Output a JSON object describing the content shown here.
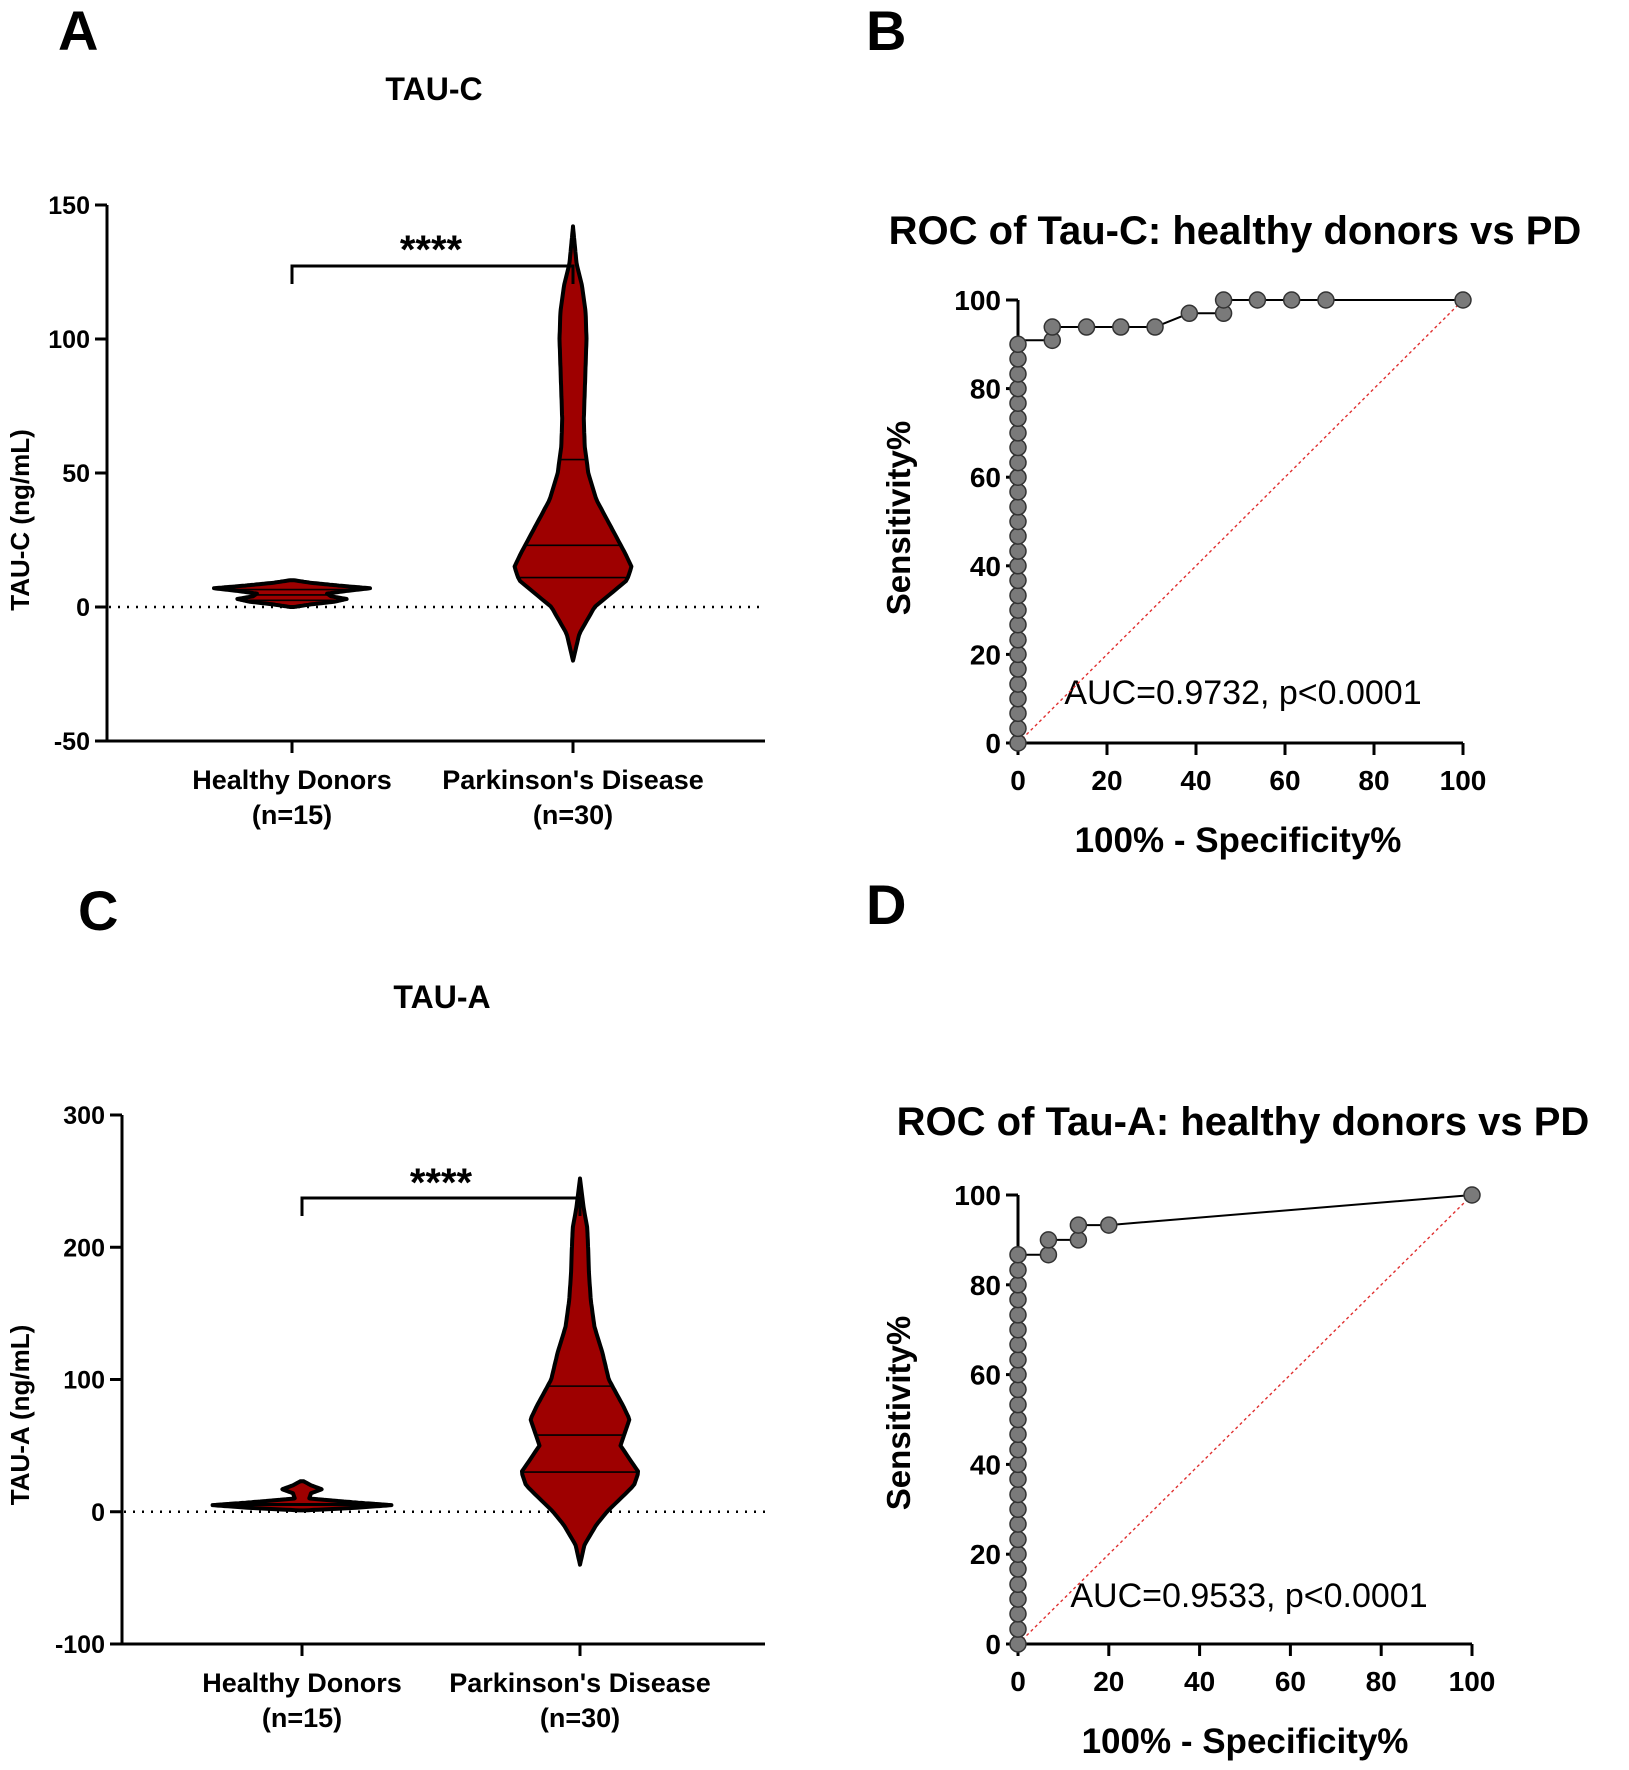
{
  "figure": {
    "panels": [
      "A",
      "B",
      "C",
      "D"
    ]
  },
  "colors": {
    "violin_fill": "#9e0000",
    "axis": "#000000",
    "roc_point": "#7a7a7a",
    "reference_line": "#e03030"
  },
  "chart_data": [
    {
      "panel": "A",
      "type": "violin",
      "title": "TAU-C",
      "ylabel": "TAU-C (ng/mL)",
      "ylim": [
        -50,
        150
      ],
      "yticks": [
        -50,
        0,
        50,
        100,
        150
      ],
      "categories": [
        "Healthy Donors",
        "Parkinson's Disease"
      ],
      "category_n": [
        "(n=15)",
        "(n=30)"
      ],
      "significance": "****",
      "reference_line": 0,
      "groups": [
        {
          "name": "Healthy Donors",
          "profile": [
            [
              0,
              0.02
            ],
            [
              1,
              0.25
            ],
            [
              2,
              0.55
            ],
            [
              3,
              0.7
            ],
            [
              4,
              0.5
            ],
            [
              5,
              0.45
            ],
            [
              6,
              0.7
            ],
            [
              7,
              1.0
            ],
            [
              8,
              0.6
            ],
            [
              9,
              0.25
            ],
            [
              10,
              0.02
            ]
          ],
          "quartiles": [
            2.5,
            4.5,
            6.5
          ]
        },
        {
          "name": "Parkinson's Disease",
          "profile": [
            [
              -20,
              0.0
            ],
            [
              -10,
              0.07
            ],
            [
              0,
              0.24
            ],
            [
              10,
              0.6
            ],
            [
              15,
              0.65
            ],
            [
              20,
              0.58
            ],
            [
              30,
              0.42
            ],
            [
              40,
              0.26
            ],
            [
              50,
              0.17
            ],
            [
              55,
              0.15
            ],
            [
              60,
              0.13
            ],
            [
              70,
              0.12
            ],
            [
              80,
              0.13
            ],
            [
              90,
              0.14
            ],
            [
              100,
              0.15
            ],
            [
              110,
              0.14
            ],
            [
              120,
              0.1
            ],
            [
              128,
              0.04
            ],
            [
              142,
              0.0
            ]
          ],
          "quartiles": [
            11,
            23,
            55
          ]
        }
      ]
    },
    {
      "panel": "B",
      "type": "roc",
      "title": "ROC of Tau-C: healthy donors vs PD",
      "xlabel": "100% - Specificity%",
      "ylabel": "Sensitivity%",
      "xlim": [
        0,
        100
      ],
      "ylim": [
        0,
        100
      ],
      "xticks": [
        0,
        20,
        40,
        60,
        80,
        100
      ],
      "yticks": [
        0,
        20,
        40,
        60,
        80,
        100
      ],
      "annotation": "AUC=0.9732, p<0.0001",
      "auc": 0.9732,
      "points": [
        [
          0,
          0
        ],
        [
          0,
          3.3
        ],
        [
          0,
          6.7
        ],
        [
          0,
          10
        ],
        [
          0,
          13.3
        ],
        [
          0,
          16.7
        ],
        [
          0,
          20
        ],
        [
          0,
          23.3
        ],
        [
          0,
          26.7
        ],
        [
          0,
          30
        ],
        [
          0,
          33.3
        ],
        [
          0,
          36.7
        ],
        [
          0,
          40
        ],
        [
          0,
          43.3
        ],
        [
          0,
          46.7
        ],
        [
          0,
          50
        ],
        [
          0,
          53.3
        ],
        [
          0,
          56.7
        ],
        [
          0,
          60
        ],
        [
          0,
          63.3
        ],
        [
          0,
          66.7
        ],
        [
          0,
          70
        ],
        [
          0,
          73.3
        ],
        [
          0,
          76.7
        ],
        [
          0,
          80
        ],
        [
          0,
          83.3
        ],
        [
          0,
          86.7
        ],
        [
          0,
          90
        ],
        [
          7.7,
          90.9
        ],
        [
          7.7,
          93.9
        ],
        [
          15.4,
          93.9
        ],
        [
          23.1,
          93.9
        ],
        [
          30.8,
          93.9
        ],
        [
          38.5,
          97
        ],
        [
          46.2,
          97
        ],
        [
          46.2,
          100
        ],
        [
          53.8,
          100
        ],
        [
          61.5,
          100
        ],
        [
          69.2,
          100
        ],
        [
          100,
          100
        ]
      ],
      "curve": [
        [
          0,
          0
        ],
        [
          0,
          90.9
        ],
        [
          7.7,
          90.9
        ],
        [
          7.7,
          93.9
        ],
        [
          30.8,
          93.9
        ],
        [
          38.5,
          97
        ],
        [
          46.2,
          97
        ],
        [
          46.2,
          100
        ],
        [
          100,
          100
        ]
      ]
    },
    {
      "panel": "C",
      "type": "violin",
      "title": "TAU-A",
      "ylabel": "TAU-A (ng/mL)",
      "ylim": [
        -100,
        300
      ],
      "yticks": [
        -100,
        0,
        100,
        200,
        300
      ],
      "categories": [
        "Healthy Donors",
        "Parkinson's Disease"
      ],
      "category_n": [
        "(n=15)",
        "(n=30)"
      ],
      "significance": "****",
      "reference_line": 0,
      "groups": [
        {
          "name": "Healthy Donors",
          "profile": [
            [
              1,
              0.02
            ],
            [
              3,
              0.6
            ],
            [
              5,
              1.0
            ],
            [
              7,
              0.6
            ],
            [
              10,
              0.08
            ],
            [
              14,
              0.1
            ],
            [
              17,
              0.22
            ],
            [
              20,
              0.1
            ],
            [
              23,
              0.02
            ]
          ],
          "quartiles": [
            5,
            6
          ]
        },
        {
          "name": "Parkinson's Disease",
          "profile": [
            [
              -40,
              0.0
            ],
            [
              -25,
              0.05
            ],
            [
              -10,
              0.18
            ],
            [
              0,
              0.3
            ],
            [
              20,
              0.6
            ],
            [
              30,
              0.65
            ],
            [
              40,
              0.55
            ],
            [
              50,
              0.45
            ],
            [
              60,
              0.5
            ],
            [
              70,
              0.55
            ],
            [
              80,
              0.48
            ],
            [
              100,
              0.32
            ],
            [
              120,
              0.25
            ],
            [
              140,
              0.16
            ],
            [
              160,
              0.12
            ],
            [
              180,
              0.1
            ],
            [
              200,
              0.09
            ],
            [
              215,
              0.08
            ],
            [
              230,
              0.04
            ],
            [
              252,
              0.0
            ]
          ],
          "quartiles": [
            30,
            58,
            95
          ]
        }
      ]
    },
    {
      "panel": "D",
      "type": "roc",
      "title": "ROC of Tau-A: healthy donors vs PD",
      "xlabel": "100% - Specificity%",
      "ylabel": "Sensitivity%",
      "xlim": [
        0,
        100
      ],
      "ylim": [
        0,
        100
      ],
      "xticks": [
        0,
        20,
        40,
        60,
        80,
        100
      ],
      "yticks": [
        0,
        20,
        40,
        60,
        80,
        100
      ],
      "annotation": "AUC=0.9533, p<0.0001",
      "auc": 0.9533,
      "points": [
        [
          0,
          0
        ],
        [
          0,
          3.3
        ],
        [
          0,
          6.7
        ],
        [
          0,
          10
        ],
        [
          0,
          13.3
        ],
        [
          0,
          16.7
        ],
        [
          0,
          20
        ],
        [
          0,
          23.3
        ],
        [
          0,
          26.7
        ],
        [
          0,
          30
        ],
        [
          0,
          33.3
        ],
        [
          0,
          36.7
        ],
        [
          0,
          40
        ],
        [
          0,
          43.3
        ],
        [
          0,
          46.7
        ],
        [
          0,
          50
        ],
        [
          0,
          53.3
        ],
        [
          0,
          56.7
        ],
        [
          0,
          60
        ],
        [
          0,
          63.3
        ],
        [
          0,
          66.7
        ],
        [
          0,
          70
        ],
        [
          0,
          73.3
        ],
        [
          0,
          76.7
        ],
        [
          0,
          80
        ],
        [
          0,
          83.3
        ],
        [
          0,
          86.7
        ],
        [
          6.7,
          86.7
        ],
        [
          6.7,
          90
        ],
        [
          13.3,
          90
        ],
        [
          13.3,
          93.3
        ],
        [
          20,
          93.3
        ],
        [
          100,
          100
        ]
      ],
      "curve": [
        [
          0,
          0
        ],
        [
          0,
          86.7
        ],
        [
          6.7,
          86.7
        ],
        [
          6.7,
          90
        ],
        [
          13.3,
          90
        ],
        [
          13.3,
          93.3
        ],
        [
          20,
          93.3
        ],
        [
          100,
          100
        ]
      ]
    }
  ]
}
